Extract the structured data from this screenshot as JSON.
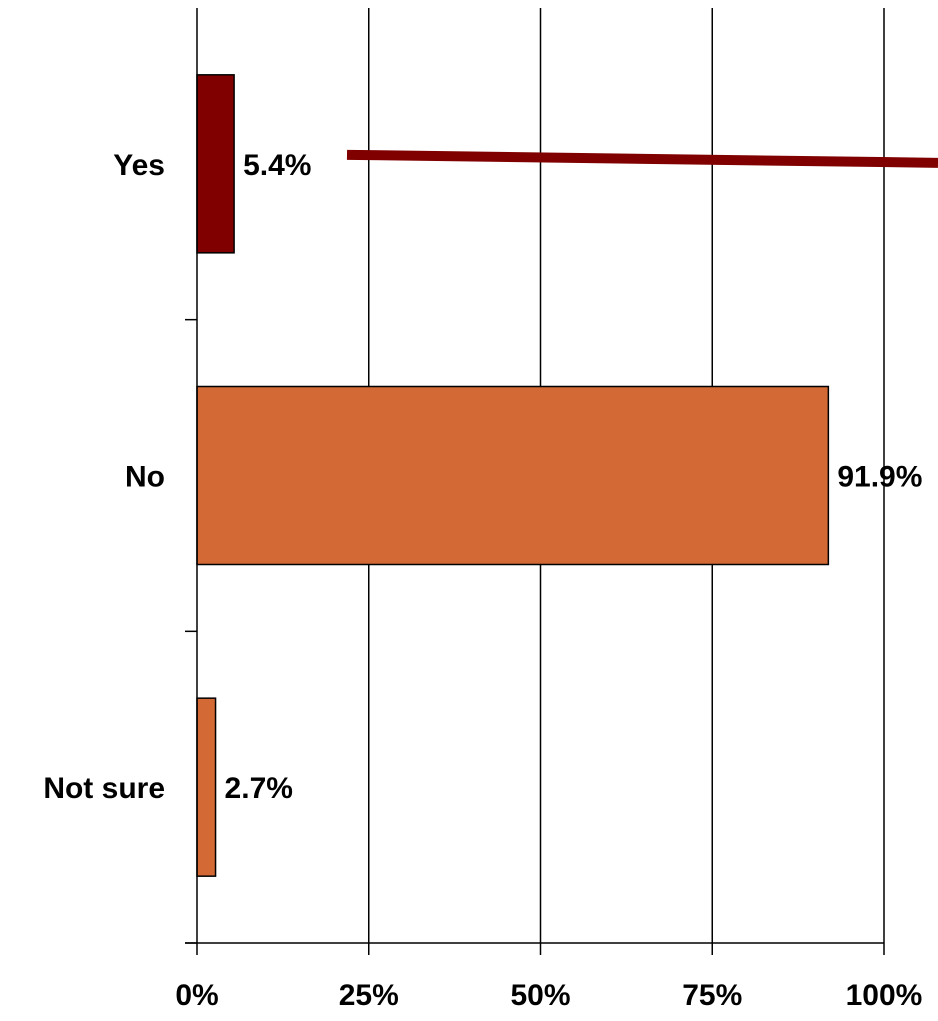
{
  "chart_data": {
    "type": "bar",
    "orientation": "horizontal",
    "title": "",
    "xlabel": "",
    "ylabel": "",
    "categories": [
      "Yes",
      "No",
      "Not sure"
    ],
    "values": [
      5.4,
      91.9,
      2.7
    ],
    "value_labels": [
      "5.4%",
      "91.9%",
      "2.7%"
    ],
    "bar_colors": [
      "#800000",
      "#D36A36",
      "#D36A36"
    ],
    "xlim": [
      0,
      100
    ],
    "xticks": [
      0,
      25,
      50,
      75,
      100
    ],
    "xtick_labels": [
      "0%",
      "25%",
      "50%",
      "75%",
      "100%"
    ],
    "grid": "vertical",
    "legend": "none",
    "highlight_line_color": "#800000"
  }
}
